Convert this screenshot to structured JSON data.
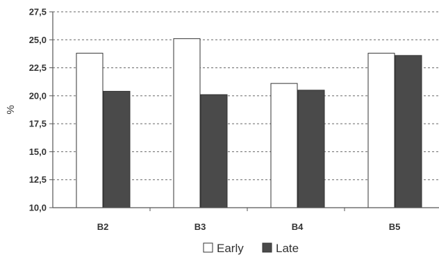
{
  "chart_data": {
    "type": "bar",
    "categories": [
      "B2",
      "B3",
      "B4",
      "B5"
    ],
    "series": [
      {
        "name": "Early",
        "values": [
          23.8,
          25.1,
          21.1,
          23.8
        ],
        "color": "#ffffff"
      },
      {
        "name": "Late",
        "values": [
          20.4,
          20.1,
          20.5,
          23.6
        ],
        "color": "#4a4a4a"
      }
    ],
    "ylabel": "%",
    "xlabel": "",
    "ylim": [
      10.0,
      27.5
    ],
    "yticks": [
      "10,0",
      "12,5",
      "15,0",
      "17,5",
      "20,0",
      "22,5",
      "25,0",
      "27,5"
    ],
    "grid": true,
    "legend_position": "bottom"
  }
}
